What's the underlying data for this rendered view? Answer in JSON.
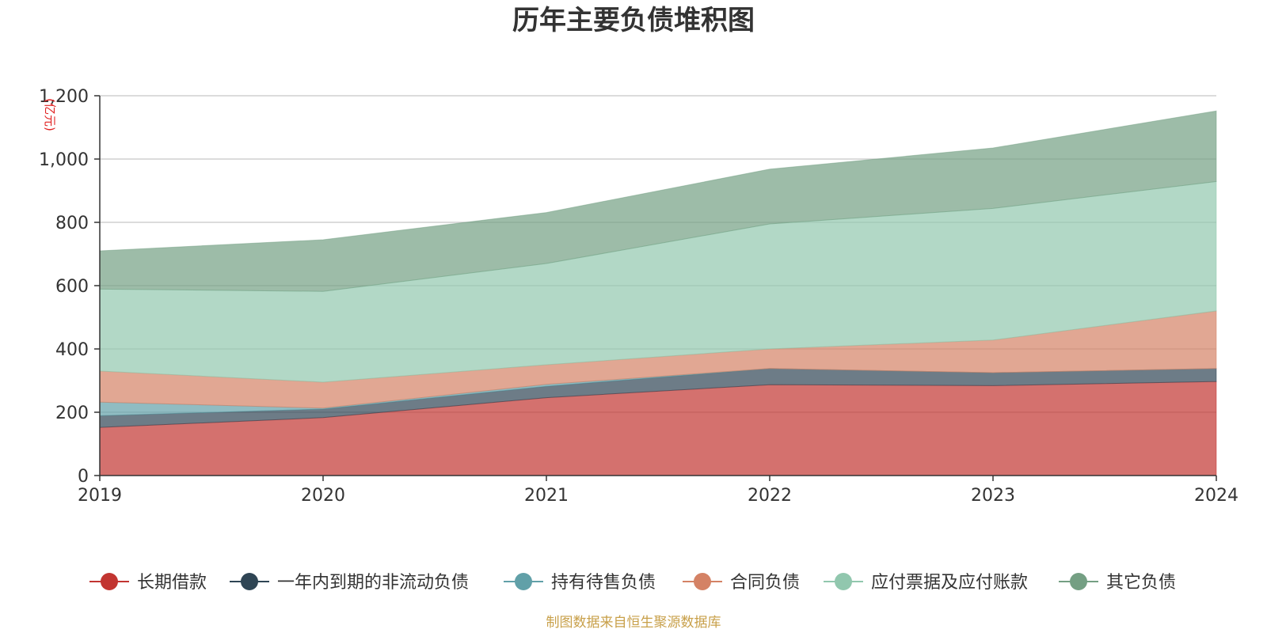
{
  "chart_data": {
    "type": "area",
    "stacked": true,
    "title": "历年主要负债堆积图",
    "unit": "(亿元)",
    "categories": [
      "2019",
      "2020",
      "2021",
      "2022",
      "2023",
      "2024"
    ],
    "ylim": [
      0,
      1200
    ],
    "yticks": [
      0,
      200,
      400,
      600,
      800,
      1000,
      1200
    ],
    "ytick_labels": [
      "0",
      "200",
      "400",
      "600",
      "800",
      "1,000",
      "1,200"
    ],
    "grid": true,
    "legend_position": "bottom",
    "series": [
      {
        "name": "长期借款",
        "color": "#c23531",
        "values": [
          152,
          183,
          246,
          287,
          284,
          297
        ]
      },
      {
        "name": "一年内到期的非流动负债",
        "color": "#2f4554",
        "values": [
          37,
          27,
          36,
          51,
          41,
          41
        ]
      },
      {
        "name": "持有待售负债",
        "color": "#61a0a8",
        "values": [
          43,
          3,
          6,
          0,
          0,
          0
        ]
      },
      {
        "name": "合同负债",
        "color": "#d48265",
        "values": [
          98,
          82,
          62,
          62,
          103,
          182
        ]
      },
      {
        "name": "应付票据及应付账款",
        "color": "#91c7ae",
        "values": [
          259,
          287,
          320,
          395,
          416,
          409
        ]
      },
      {
        "name": "其它负债",
        "color": "#749f83",
        "values": [
          121,
          163,
          161,
          173,
          191,
          223
        ]
      }
    ],
    "source": "制图数据来自恒生聚源数据库"
  }
}
